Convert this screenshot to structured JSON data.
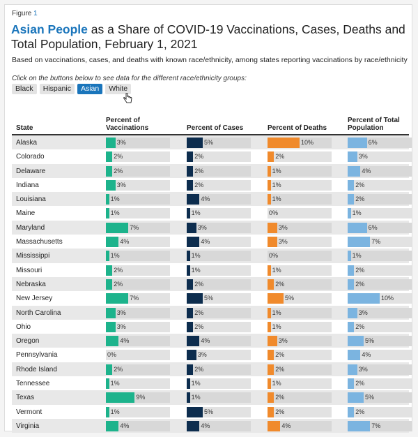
{
  "figure": {
    "label": "Figure",
    "number": "1"
  },
  "title": {
    "highlight": "Asian People",
    "rest": " as a Share of COVID-19 Vaccinations, Cases, Deaths and Total Population, February 1, 2021"
  },
  "subtitle": "Based on vaccinations, cases, and deaths with known race/ethnicity, among states reporting vaccinations by race/ethnicity",
  "instructions": "Click on the buttons below to see data for the different race/ethnicity groups:",
  "buttons": [
    "Black",
    "Hispanic",
    "Asian",
    "White"
  ],
  "active_button": "Asian",
  "colors": {
    "vaccinations": "#1db38c",
    "cases": "#0d2d4e",
    "deaths": "#f08a2c",
    "population": "#7bb4e0",
    "accent": "#1a75bb"
  },
  "chart_data": {
    "type": "table",
    "columns": [
      "State",
      "Percent of Vaccinations",
      "Percent of Cases",
      "Percent of Deaths",
      "Percent of Total Population"
    ],
    "bar_scale_max": 20,
    "rows": [
      {
        "state": "Alaska",
        "values": [
          3,
          5,
          10,
          6
        ]
      },
      {
        "state": "Colorado",
        "values": [
          2,
          2,
          2,
          3
        ]
      },
      {
        "state": "Delaware",
        "values": [
          2,
          2,
          1,
          4
        ]
      },
      {
        "state": "Indiana",
        "values": [
          3,
          2,
          1,
          2
        ]
      },
      {
        "state": "Louisiana",
        "values": [
          1,
          4,
          1,
          2
        ]
      },
      {
        "state": "Maine",
        "values": [
          1,
          1,
          0,
          1
        ]
      },
      {
        "state": "Maryland",
        "values": [
          7,
          3,
          3,
          6
        ]
      },
      {
        "state": "Massachusetts",
        "values": [
          4,
          4,
          3,
          7
        ]
      },
      {
        "state": "Mississippi",
        "values": [
          1,
          1,
          0,
          1
        ]
      },
      {
        "state": "Missouri",
        "values": [
          2,
          1,
          1,
          2
        ]
      },
      {
        "state": "Nebraska",
        "values": [
          2,
          2,
          2,
          2
        ]
      },
      {
        "state": "New Jersey",
        "values": [
          7,
          5,
          5,
          10
        ]
      },
      {
        "state": "North Carolina",
        "values": [
          3,
          2,
          1,
          3
        ]
      },
      {
        "state": "Ohio",
        "values": [
          3,
          2,
          1,
          2
        ]
      },
      {
        "state": "Oregon",
        "values": [
          4,
          4,
          3,
          5
        ]
      },
      {
        "state": "Pennsylvania",
        "values": [
          0,
          3,
          2,
          4
        ]
      },
      {
        "state": "Rhode Island",
        "values": [
          2,
          2,
          2,
          3
        ]
      },
      {
        "state": "Tennessee",
        "values": [
          1,
          1,
          1,
          2
        ]
      },
      {
        "state": "Texas",
        "values": [
          9,
          1,
          2,
          5
        ]
      },
      {
        "state": "Vermont",
        "values": [
          1,
          5,
          2,
          2
        ]
      },
      {
        "state": "Virginia",
        "values": [
          4,
          4,
          4,
          7
        ]
      }
    ]
  }
}
